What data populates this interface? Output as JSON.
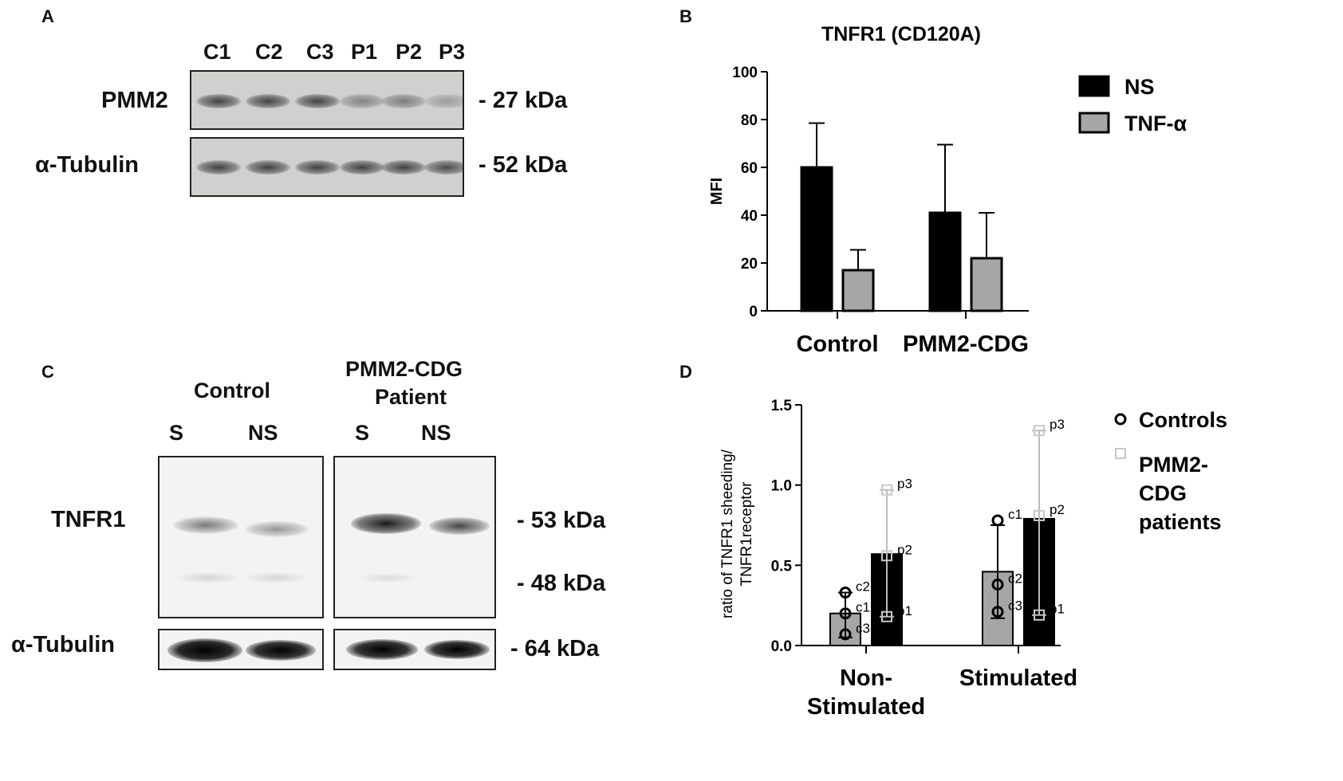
{
  "panelA": {
    "label": "A",
    "lanes": [
      "C1",
      "C2",
      "C3",
      "P1",
      "P2",
      "P3"
    ],
    "rows": [
      {
        "name": "PMM2",
        "kda": "- 27 kDa"
      },
      {
        "name": "α-Tubulin",
        "kda": "- 52 kDa"
      }
    ],
    "band_intensity": {
      "PMM2": [
        0.85,
        0.85,
        0.85,
        0.45,
        0.5,
        0.3
      ],
      "tubulin": [
        0.85,
        0.85,
        0.85,
        0.85,
        0.85,
        0.8
      ]
    }
  },
  "panelC": {
    "label": "C",
    "group_control": "Control",
    "group_patient_line1": "PMM2-CDG",
    "group_patient_line2": "Patient",
    "lanes": [
      "S",
      "NS",
      "S",
      "NS"
    ],
    "row_tnfr1": "TNFR1",
    "row_tubulin": "α-Tubulin",
    "kda": [
      "- 53 kDa",
      "- 48 kDa",
      "- 64 kDa"
    ]
  },
  "chart_data": [
    {
      "panel": "B",
      "type": "bar",
      "title": "TNFR1 (CD120A)",
      "ylabel": "MFI",
      "xlabel": "",
      "categories": [
        "Control",
        "PMM2-CDG"
      ],
      "ylim": [
        0,
        100
      ],
      "yticks": [
        0,
        20,
        40,
        60,
        80,
        100
      ],
      "series": [
        {
          "name": "NS",
          "color": "#000000",
          "values": [
            60,
            41
          ],
          "err_upper": [
            78.5,
            69.5
          ]
        },
        {
          "name": "TNF-α",
          "color": "#a6a6a6",
          "values": [
            17,
            22
          ],
          "err_upper": [
            25.5,
            41
          ]
        }
      ],
      "legend": "top-right",
      "grid": false
    },
    {
      "panel": "D",
      "type": "bar",
      "title": "",
      "ylabel_line1": "ratio of TNFR1 sheeding/",
      "ylabel_line2": "TNFR1receptor",
      "categories_line1": [
        "Non-",
        "Stimulated"
      ],
      "categories_line2": [
        "Stimulated",
        ""
      ],
      "ylim": [
        0,
        1.5
      ],
      "yticks": [
        "0.0",
        "0.5",
        "1.0",
        "1.5"
      ],
      "ytick_values": [
        0,
        0.5,
        1.0,
        1.5
      ],
      "series": [
        {
          "name": "Controls",
          "color": "#a6a6a6",
          "values": [
            0.2,
            0.46
          ],
          "err_low": [
            0.05,
            0.17
          ],
          "err_high": [
            0.33,
            0.75
          ],
          "points": [
            [
              {
                "label": "c2",
                "y": 0.33
              },
              {
                "label": "c1",
                "y": 0.2
              },
              {
                "label": "c3",
                "y": 0.07
              }
            ],
            [
              {
                "label": "c1",
                "y": 0.78
              },
              {
                "label": "c2",
                "y": 0.38
              },
              {
                "label": "c3",
                "y": 0.21
              }
            ]
          ]
        },
        {
          "name": "PMM2-CDG patients",
          "color": "#000000",
          "values": [
            0.57,
            0.79
          ],
          "err_low": [
            0.18,
            0.19
          ],
          "err_high": [
            0.97,
            1.34
          ],
          "points": [
            [
              {
                "label": "p3",
                "y": 0.97
              },
              {
                "label": "p2",
                "y": 0.56
              },
              {
                "label": "p1",
                "y": 0.18
              }
            ],
            [
              {
                "label": "p3",
                "y": 1.34
              },
              {
                "label": "p2",
                "y": 0.81
              },
              {
                "label": "p1",
                "y": 0.19
              }
            ]
          ]
        }
      ],
      "legend": "right",
      "legend_labels": {
        "controls": "Controls",
        "patients_lines": [
          "PMM2-",
          "CDG",
          "patients"
        ]
      },
      "grid": false
    }
  ]
}
